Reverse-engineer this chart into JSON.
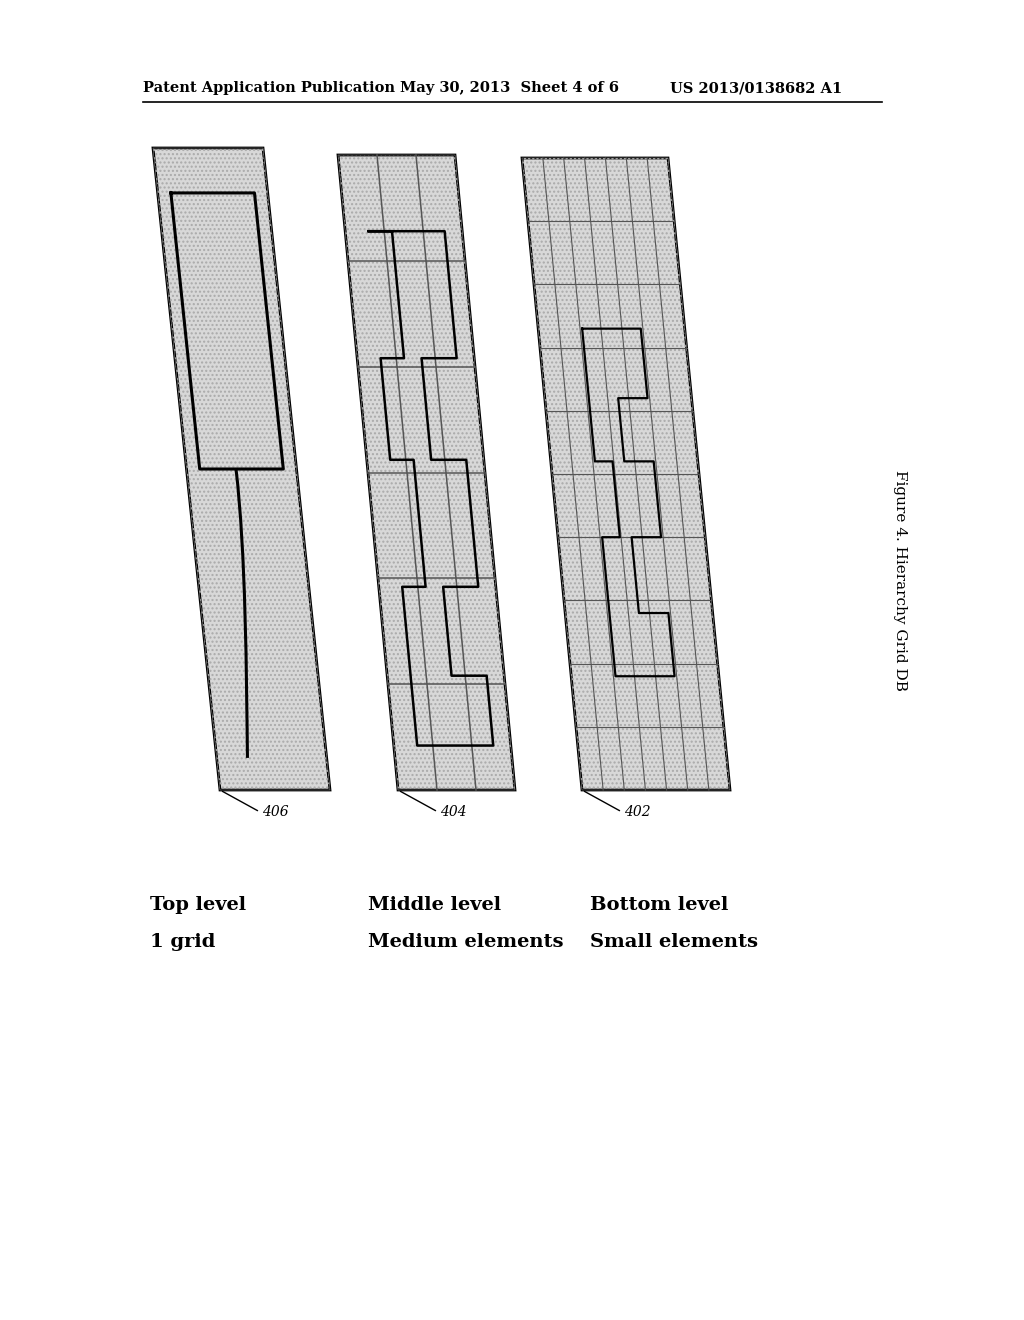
{
  "bg_color": "#ffffff",
  "header_left": "Patent Application Publication",
  "header_mid": "May 30, 2013  Sheet 4 of 6",
  "header_right": "US 2013/0138682 A1",
  "figure_caption": "Figure 4. Hierarchy Grid DB",
  "label_406": "406",
  "label_404": "404",
  "label_402": "402",
  "legend": [
    {
      "l1": "Top level",
      "l2": "1 grid"
    },
    {
      "l1": "Middle level",
      "l2": "Medium elements"
    },
    {
      "l1": "Bottom level",
      "l2": "Small elements"
    }
  ],
  "panel_fill": "#d8d8d8",
  "grid_color": "#555555",
  "shape_color": "#000000",
  "header_fontsize": 10.5,
  "caption_fontsize": 11,
  "legend_fontsize": 14
}
